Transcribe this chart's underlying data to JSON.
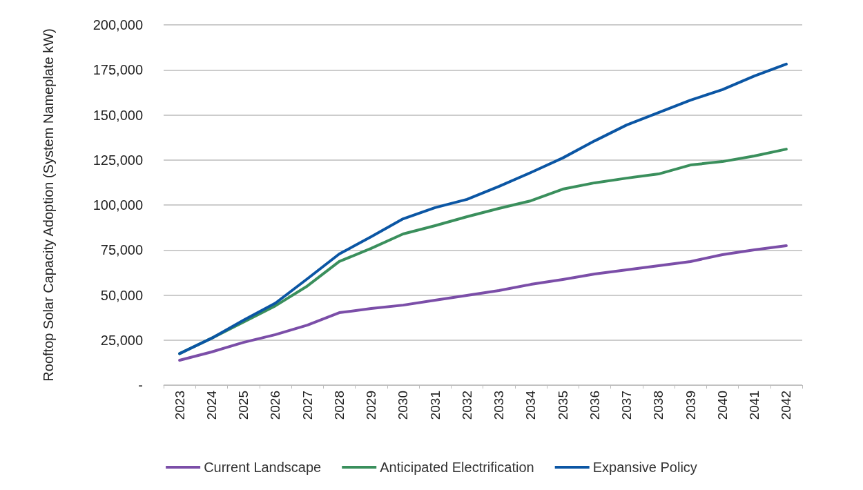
{
  "chart_data": {
    "type": "line",
    "ylabel": "Rooftop Solar Capacity Adoption (System Nameplate kW)",
    "categories": [
      "2023",
      "2024",
      "2025",
      "2026",
      "2027",
      "2028",
      "2029",
      "2030",
      "2031",
      "2032",
      "2033",
      "2034",
      "2035",
      "2036",
      "2037",
      "2038",
      "2039",
      "2040",
      "2041",
      "2042"
    ],
    "series": [
      {
        "name": "Current Landscape",
        "color": "#7b4ea8",
        "values": [
          13800,
          18400,
          23700,
          28000,
          33300,
          40200,
          42500,
          44400,
          47100,
          49800,
          52500,
          55900,
          58600,
          61700,
          64000,
          66300,
          68600,
          72400,
          75100,
          77400
        ]
      },
      {
        "name": "Anticipated Electrification",
        "color": "#3a8f5c",
        "values": [
          17500,
          26000,
          35000,
          44000,
          55000,
          68600,
          75900,
          83900,
          88500,
          93500,
          98100,
          102300,
          108800,
          112300,
          114900,
          117200,
          122200,
          124100,
          127200,
          131000
        ]
      },
      {
        "name": "Expansive Policy",
        "color": "#0b56a4",
        "values": [
          17500,
          26000,
          36000,
          45500,
          59000,
          72800,
          82400,
          92300,
          98500,
          103100,
          110300,
          118000,
          126100,
          135600,
          144400,
          151300,
          158200,
          164000,
          171600,
          178200
        ]
      }
    ],
    "ylim": [
      0,
      200000
    ],
    "yticks": [
      {
        "value": 0,
        "label": "-"
      },
      {
        "value": 25000,
        "label": "25,000"
      },
      {
        "value": 50000,
        "label": "50,000"
      },
      {
        "value": 75000,
        "label": "75,000"
      },
      {
        "value": 100000,
        "label": "100,000"
      },
      {
        "value": 125000,
        "label": "125,000"
      },
      {
        "value": 150000,
        "label": "150,000"
      },
      {
        "value": 175000,
        "label": "175,000"
      },
      {
        "value": 200000,
        "label": "200,000"
      }
    ],
    "grid": "y",
    "legend": "bottom",
    "marker": "none",
    "line_style": "solid"
  }
}
